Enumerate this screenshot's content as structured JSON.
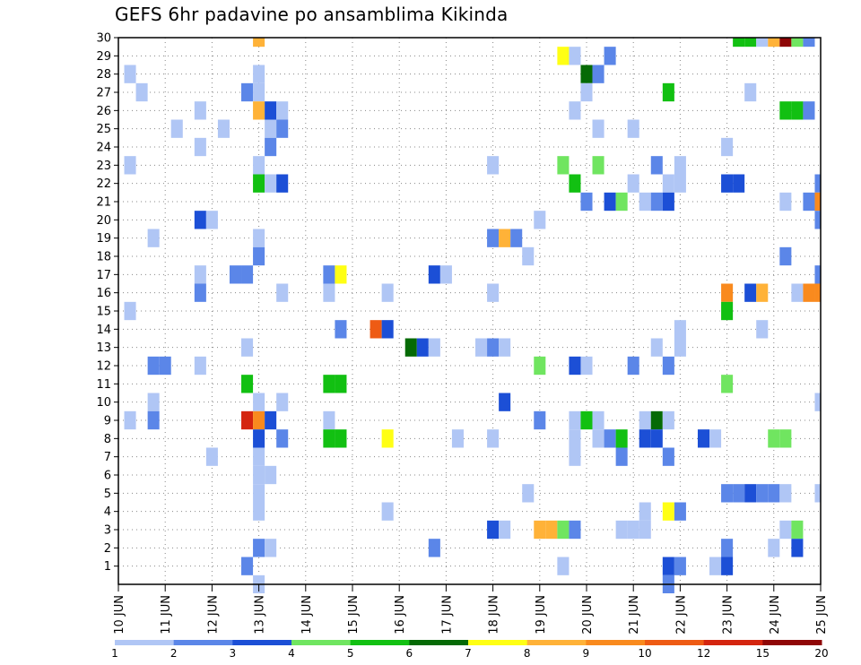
{
  "chart_data": {
    "type": "heatmap",
    "title": "GEFS 6hr padavine po ansamblima Kikinda",
    "x_tick_labels": [
      "10 JUN",
      "11 JUN",
      "12 JUN",
      "13 JUN",
      "14 JUN",
      "15 JUN",
      "16 JUN",
      "17 JUN",
      "18 JUN",
      "19 JUN",
      "20 JUN",
      "21 JUN",
      "22 JUN",
      "23 JUN",
      "24 JUN",
      "25 JUN"
    ],
    "x_range_days": [
      0,
      15
    ],
    "y_tick_labels": [
      "1",
      "2",
      "3",
      "4",
      "5",
      "6",
      "7",
      "8",
      "9",
      "10",
      "11",
      "12",
      "13",
      "14",
      "15",
      "16",
      "17",
      "18",
      "19",
      "20",
      "21",
      "22",
      "23",
      "24",
      "25",
      "26",
      "27",
      "28",
      "29",
      "30"
    ],
    "y_range": [
      0,
      30
    ],
    "grid": true,
    "legend": {
      "placement": "bottom",
      "levels": [
        "1",
        "2",
        "3",
        "4",
        "5",
        "6",
        "7",
        "8",
        "9",
        "10",
        "12",
        "15",
        "20"
      ],
      "colors": [
        "#b0c6f5",
        "#5b86e8",
        "#1c4fd6",
        "#70e560",
        "#12c012",
        "#056a05",
        "#ffff14",
        "#ffb238",
        "#f98a1e",
        "#ee5b14",
        "#d4250f",
        "#8f0707"
      ]
    },
    "points": [
      {
        "t": 1,
        "m": 28,
        "c": 0
      },
      {
        "t": 1,
        "m": 23,
        "c": 0
      },
      {
        "t": 1,
        "m": 15,
        "c": 0
      },
      {
        "t": 1,
        "m": 9,
        "c": 0
      },
      {
        "t": 2,
        "m": 27,
        "c": 0
      },
      {
        "t": 3,
        "m": 12,
        "c": 1
      },
      {
        "t": 3,
        "m": 19,
        "c": 0
      },
      {
        "t": 3,
        "m": 10,
        "c": 0
      },
      {
        "t": 3,
        "m": 9,
        "c": 1
      },
      {
        "t": 4,
        "m": 12,
        "c": 1
      },
      {
        "t": 5,
        "m": 25,
        "c": 0
      },
      {
        "t": 7,
        "m": 24,
        "c": 0
      },
      {
        "t": 7,
        "m": 26,
        "c": 0
      },
      {
        "t": 7,
        "m": 17,
        "c": 0
      },
      {
        "t": 7,
        "m": 16,
        "c": 1
      },
      {
        "t": 7,
        "m": 12,
        "c": 0
      },
      {
        "t": 7,
        "m": 20,
        "c": 2
      },
      {
        "t": 8,
        "m": 20,
        "c": 0
      },
      {
        "t": 8,
        "m": 7,
        "c": 0
      },
      {
        "t": 9,
        "m": 25,
        "c": 0
      },
      {
        "t": 10,
        "m": 17,
        "c": 1
      },
      {
        "t": 11,
        "m": 27,
        "c": 1
      },
      {
        "t": 11,
        "m": 17,
        "c": 1
      },
      {
        "t": 11,
        "m": 13,
        "c": 0
      },
      {
        "t": 11,
        "m": 11,
        "c": 4
      },
      {
        "t": 11,
        "m": 9,
        "c": 10
      },
      {
        "t": 11,
        "m": 1,
        "c": 1
      },
      {
        "t": 12,
        "m": 30,
        "c": 7
      },
      {
        "t": 12,
        "m": 28,
        "c": 0
      },
      {
        "t": 12,
        "m": 27,
        "c": 0
      },
      {
        "t": 12,
        "m": 26,
        "c": 7
      },
      {
        "t": 12,
        "m": 23,
        "c": 0
      },
      {
        "t": 12,
        "m": 22,
        "c": 4
      },
      {
        "t": 12,
        "m": 19,
        "c": 0
      },
      {
        "t": 12,
        "m": 18,
        "c": 1
      },
      {
        "t": 12,
        "m": 10,
        "c": 0
      },
      {
        "t": 12,
        "m": 9,
        "c": 8
      },
      {
        "t": 12,
        "m": 8,
        "c": 2
      },
      {
        "t": 12,
        "m": 7,
        "c": 0
      },
      {
        "t": 12,
        "m": 6,
        "c": 0
      },
      {
        "t": 12,
        "m": 5,
        "c": 0
      },
      {
        "t": 12,
        "m": 4,
        "c": 0
      },
      {
        "t": 12,
        "m": 2,
        "c": 1
      },
      {
        "t": 12,
        "m": 0,
        "c": 0
      },
      {
        "t": 13,
        "m": 26,
        "c": 2
      },
      {
        "t": 13,
        "m": 25,
        "c": 0
      },
      {
        "t": 13,
        "m": 24,
        "c": 1
      },
      {
        "t": 13,
        "m": 22,
        "c": 0
      },
      {
        "t": 13,
        "m": 9,
        "c": 2
      },
      {
        "t": 13,
        "m": 6,
        "c": 0
      },
      {
        "t": 13,
        "m": 2,
        "c": 0
      },
      {
        "t": 14,
        "m": 26,
        "c": 0
      },
      {
        "t": 14,
        "m": 25,
        "c": 1
      },
      {
        "t": 14,
        "m": 22,
        "c": 2
      },
      {
        "t": 14,
        "m": 16,
        "c": 0
      },
      {
        "t": 14,
        "m": 10,
        "c": 0
      },
      {
        "t": 14,
        "m": 8,
        "c": 1
      },
      {
        "t": 18,
        "m": 17,
        "c": 1
      },
      {
        "t": 18,
        "m": 16,
        "c": 0
      },
      {
        "t": 18,
        "m": 9,
        "c": 0
      },
      {
        "t": 18,
        "m": 11,
        "c": 4
      },
      {
        "t": 18,
        "m": 8,
        "c": 4
      },
      {
        "t": 19,
        "m": 17,
        "c": 6
      },
      {
        "t": 19,
        "m": 14,
        "c": 1
      },
      {
        "t": 19,
        "m": 11,
        "c": 4
      },
      {
        "t": 19,
        "m": 8,
        "c": 4
      },
      {
        "t": 22,
        "m": 14,
        "c": 9
      },
      {
        "t": 23,
        "m": 16,
        "c": 0
      },
      {
        "t": 23,
        "m": 14,
        "c": 2
      },
      {
        "t": 23,
        "m": 4,
        "c": 0
      },
      {
        "t": 23,
        "m": 8,
        "c": 6
      },
      {
        "t": 25,
        "m": 13,
        "c": 5
      },
      {
        "t": 26,
        "m": 13,
        "c": 2
      },
      {
        "t": 27,
        "m": 13,
        "c": 0
      },
      {
        "t": 27,
        "m": 2,
        "c": 1
      },
      {
        "t": 27,
        "m": 17,
        "c": 2
      },
      {
        "t": 28,
        "m": 17,
        "c": 0
      },
      {
        "t": 29,
        "m": 8,
        "c": 0
      },
      {
        "t": 31,
        "m": 13,
        "c": 0
      },
      {
        "t": 32,
        "m": 23,
        "c": 0
      },
      {
        "t": 32,
        "m": 19,
        "c": 1
      },
      {
        "t": 32,
        "m": 16,
        "c": 0
      },
      {
        "t": 32,
        "m": 13,
        "c": 1
      },
      {
        "t": 32,
        "m": 8,
        "c": 0
      },
      {
        "t": 32,
        "m": 3,
        "c": 2
      },
      {
        "t": 33,
        "m": 19,
        "c": 7
      },
      {
        "t": 33,
        "m": 13,
        "c": 0
      },
      {
        "t": 33,
        "m": 10,
        "c": 2
      },
      {
        "t": 33,
        "m": 3,
        "c": 0
      },
      {
        "t": 34,
        "m": 19,
        "c": 1
      },
      {
        "t": 35,
        "m": 18,
        "c": 0
      },
      {
        "t": 35,
        "m": 5,
        "c": 0
      },
      {
        "t": 36,
        "m": 20,
        "c": 0
      },
      {
        "t": 36,
        "m": 12,
        "c": 3
      },
      {
        "t": 36,
        "m": 9,
        "c": 1
      },
      {
        "t": 36,
        "m": 3,
        "c": 7
      },
      {
        "t": 37,
        "m": 3,
        "c": 7
      },
      {
        "t": 38,
        "m": 29,
        "c": 6
      },
      {
        "t": 38,
        "m": 23,
        "c": 3
      },
      {
        "t": 38,
        "m": 3,
        "c": 3
      },
      {
        "t": 38,
        "m": 1,
        "c": 0
      },
      {
        "t": 39,
        "m": 29,
        "c": 0
      },
      {
        "t": 39,
        "m": 26,
        "c": 0
      },
      {
        "t": 39,
        "m": 22,
        "c": 4
      },
      {
        "t": 39,
        "m": 12,
        "c": 2
      },
      {
        "t": 39,
        "m": 9,
        "c": 0
      },
      {
        "t": 39,
        "m": 8,
        "c": 0
      },
      {
        "t": 39,
        "m": 7,
        "c": 0
      },
      {
        "t": 39,
        "m": 3,
        "c": 1
      },
      {
        "t": 40,
        "m": 28,
        "c": 5
      },
      {
        "t": 40,
        "m": 27,
        "c": 0
      },
      {
        "t": 40,
        "m": 21,
        "c": 1
      },
      {
        "t": 40,
        "m": 12,
        "c": 0
      },
      {
        "t": 40,
        "m": 9,
        "c": 4
      },
      {
        "t": 41,
        "m": 28,
        "c": 1
      },
      {
        "t": 41,
        "m": 25,
        "c": 0
      },
      {
        "t": 41,
        "m": 23,
        "c": 3
      },
      {
        "t": 41,
        "m": 9,
        "c": 0
      },
      {
        "t": 41,
        "m": 8,
        "c": 0
      },
      {
        "t": 42,
        "m": 29,
        "c": 1
      },
      {
        "t": 42,
        "m": 21,
        "c": 2
      },
      {
        "t": 42,
        "m": 8,
        "c": 1
      },
      {
        "t": 43,
        "m": 21,
        "c": 3
      },
      {
        "t": 43,
        "m": 8,
        "c": 4
      },
      {
        "t": 43,
        "m": 7,
        "c": 1
      },
      {
        "t": 43,
        "m": 3,
        "c": 0
      },
      {
        "t": 44,
        "m": 25,
        "c": 0
      },
      {
        "t": 44,
        "m": 22,
        "c": 0
      },
      {
        "t": 44,
        "m": 12,
        "c": 1
      },
      {
        "t": 44,
        "m": 3,
        "c": 0
      },
      {
        "t": 45,
        "m": 21,
        "c": 0
      },
      {
        "t": 45,
        "m": 9,
        "c": 0
      },
      {
        "t": 45,
        "m": 8,
        "c": 2
      },
      {
        "t": 45,
        "m": 4,
        "c": 0
      },
      {
        "t": 45,
        "m": 3,
        "c": 0
      },
      {
        "t": 46,
        "m": 23,
        "c": 1
      },
      {
        "t": 46,
        "m": 21,
        "c": 1
      },
      {
        "t": 46,
        "m": 13,
        "c": 0
      },
      {
        "t": 46,
        "m": 9,
        "c": 5
      },
      {
        "t": 46,
        "m": 8,
        "c": 2
      },
      {
        "t": 47,
        "m": 27,
        "c": 4
      },
      {
        "t": 47,
        "m": 22,
        "c": 0
      },
      {
        "t": 47,
        "m": 21,
        "c": 2
      },
      {
        "t": 47,
        "m": 12,
        "c": 1
      },
      {
        "t": 47,
        "m": 9,
        "c": 0
      },
      {
        "t": 47,
        "m": 7,
        "c": 1
      },
      {
        "t": 47,
        "m": 4,
        "c": 6
      },
      {
        "t": 47,
        "m": 1,
        "c": 2
      },
      {
        "t": 47,
        "m": 0,
        "c": 1
      },
      {
        "t": 48,
        "m": 23,
        "c": 0
      },
      {
        "t": 48,
        "m": 22,
        "c": 0
      },
      {
        "t": 48,
        "m": 14,
        "c": 0
      },
      {
        "t": 48,
        "m": 13,
        "c": 0
      },
      {
        "t": 48,
        "m": 4,
        "c": 1
      },
      {
        "t": 48,
        "m": 1,
        "c": 1
      },
      {
        "t": 50,
        "m": 8,
        "c": 2
      },
      {
        "t": 51,
        "m": 8,
        "c": 0
      },
      {
        "t": 51,
        "m": 1,
        "c": 0
      },
      {
        "t": 52,
        "m": 24,
        "c": 0
      },
      {
        "t": 52,
        "m": 22,
        "c": 2
      },
      {
        "t": 52,
        "m": 16,
        "c": 8
      },
      {
        "t": 52,
        "m": 15,
        "c": 4
      },
      {
        "t": 52,
        "m": 11,
        "c": 3
      },
      {
        "t": 52,
        "m": 5,
        "c": 1
      },
      {
        "t": 52,
        "m": 2,
        "c": 1
      },
      {
        "t": 52,
        "m": 1,
        "c": 2
      },
      {
        "t": 53,
        "m": 30,
        "c": 4
      },
      {
        "t": 53,
        "m": 22,
        "c": 2
      },
      {
        "t": 53,
        "m": 5,
        "c": 1
      },
      {
        "t": 54,
        "m": 30,
        "c": 4
      },
      {
        "t": 54,
        "m": 27,
        "c": 0
      },
      {
        "t": 54,
        "m": 16,
        "c": 2
      },
      {
        "t": 54,
        "m": 5,
        "c": 2
      },
      {
        "t": 55,
        "m": 30,
        "c": 0
      },
      {
        "t": 55,
        "m": 16,
        "c": 7
      },
      {
        "t": 55,
        "m": 14,
        "c": 0
      },
      {
        "t": 55,
        "m": 5,
        "c": 1
      },
      {
        "t": 56,
        "m": 30,
        "c": 7
      },
      {
        "t": 56,
        "m": 8,
        "c": 3
      },
      {
        "t": 56,
        "m": 5,
        "c": 1
      },
      {
        "t": 56,
        "m": 2,
        "c": 0
      },
      {
        "t": 57,
        "m": 30,
        "c": 11
      },
      {
        "t": 57,
        "m": 26,
        "c": 4
      },
      {
        "t": 57,
        "m": 21,
        "c": 0
      },
      {
        "t": 57,
        "m": 18,
        "c": 1
      },
      {
        "t": 57,
        "m": 8,
        "c": 3
      },
      {
        "t": 57,
        "m": 5,
        "c": 0
      },
      {
        "t": 57,
        "m": 3,
        "c": 0
      },
      {
        "t": 58,
        "m": 30,
        "c": 3
      },
      {
        "t": 58,
        "m": 26,
        "c": 4
      },
      {
        "t": 58,
        "m": 16,
        "c": 0
      },
      {
        "t": 58,
        "m": 3,
        "c": 3
      },
      {
        "t": 58,
        "m": 2,
        "c": 2
      },
      {
        "t": 59,
        "m": 30,
        "c": 1
      },
      {
        "t": 59,
        "m": 26,
        "c": 1
      },
      {
        "t": 59,
        "m": 21,
        "c": 1
      },
      {
        "t": 59,
        "m": 16,
        "c": 8
      },
      {
        "t": 60,
        "m": 22,
        "c": 1
      },
      {
        "t": 60,
        "m": 21,
        "c": 8
      },
      {
        "t": 60,
        "m": 20,
        "c": 1
      },
      {
        "t": 60,
        "m": 17,
        "c": 1
      },
      {
        "t": 60,
        "m": 16,
        "c": 8
      },
      {
        "t": 60,
        "m": 10,
        "c": 0
      },
      {
        "t": 60,
        "m": 5,
        "c": 0
      }
    ]
  }
}
